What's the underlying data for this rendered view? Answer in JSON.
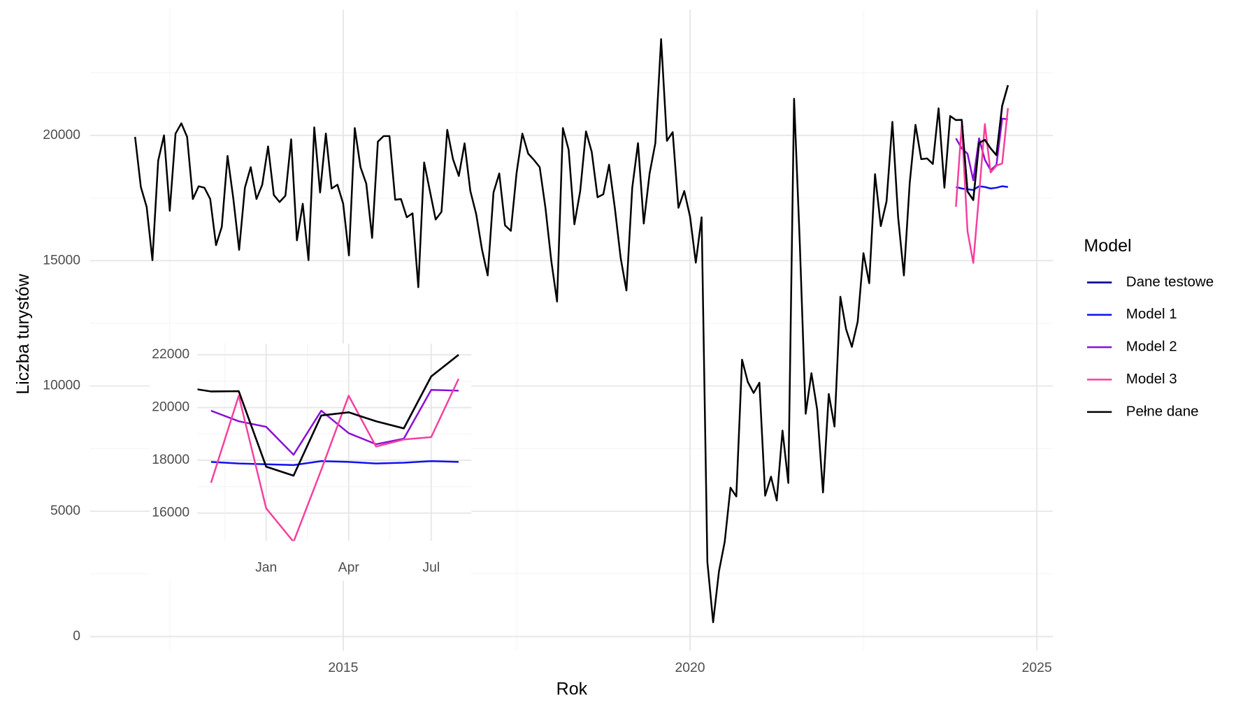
{
  "chart_data": [
    {
      "type": "line",
      "x_label": "Rok",
      "y_label": "Liczba turystów",
      "legend_title": "Model",
      "legend": "right",
      "grid": true,
      "xlim": [
        2011.35,
        2025.23
      ],
      "xticks": [
        2015,
        2020,
        2025
      ],
      "x_minor_ticks": [
        2012.5,
        2017.5,
        2022.5
      ],
      "ylim": [
        -570,
        25020
      ],
      "yticks": [
        0,
        5000,
        10000,
        15000,
        20000
      ],
      "y_minor_ticks": [
        2500,
        7500,
        12500,
        17500,
        22500
      ],
      "series": [
        {
          "name": "Dane testowe",
          "color": "#00008b",
          "x": [
            2023.833,
            2023.917,
            2024,
            2024.083,
            2024.167,
            2024.25,
            2024.333,
            2024.417,
            2024.5,
            2024.583
          ],
          "values": [
            20610,
            20620,
            17760,
            17420,
            19700,
            19820,
            19480,
            19210,
            21180,
            22000
          ]
        },
        {
          "name": "Model 1",
          "color": "#1010f0",
          "x": [
            2023.833,
            2023.917,
            2024,
            2024.083,
            2024.167,
            2024.25,
            2024.333,
            2024.417,
            2024.5,
            2024.583
          ],
          "values": [
            17940,
            17880,
            17850,
            17820,
            17970,
            17940,
            17880,
            17910,
            17970,
            17940
          ]
        },
        {
          "name": "Model 2",
          "color": "#8a0fd8",
          "x": [
            2023.833,
            2023.917,
            2024,
            2024.083,
            2024.167,
            2024.25,
            2024.333,
            2024.417,
            2024.5,
            2024.583
          ],
          "values": [
            19880,
            19480,
            19270,
            18210,
            19880,
            19030,
            18610,
            18820,
            20670,
            20640
          ]
        },
        {
          "name": "Model 3",
          "color": "#f5409e",
          "x": [
            2023.833,
            2023.917,
            2024,
            2024.083,
            2024.167,
            2024.25,
            2024.333,
            2024.417,
            2024.5,
            2024.583
          ],
          "values": [
            17150,
            20450,
            16180,
            14910,
            17640,
            20450,
            18520,
            18790,
            18880,
            21090
          ]
        },
        {
          "name": "Pełne dane",
          "color": "#000000",
          "x": [
            2012,
            2012.083,
            2012.167,
            2012.25,
            2012.333,
            2012.417,
            2012.5,
            2012.583,
            2012.667,
            2012.75,
            2012.833,
            2012.917,
            2013,
            2013.083,
            2013.167,
            2013.25,
            2013.333,
            2013.417,
            2013.5,
            2013.583,
            2013.667,
            2013.75,
            2013.833,
            2013.917,
            2014,
            2014.083,
            2014.167,
            2014.25,
            2014.333,
            2014.417,
            2014.5,
            2014.583,
            2014.667,
            2014.75,
            2014.833,
            2014.917,
            2015,
            2015.083,
            2015.167,
            2015.25,
            2015.333,
            2015.417,
            2015.5,
            2015.583,
            2015.667,
            2015.75,
            2015.833,
            2015.917,
            2016,
            2016.083,
            2016.167,
            2016.25,
            2016.333,
            2016.417,
            2016.5,
            2016.583,
            2016.667,
            2016.75,
            2016.833,
            2016.917,
            2017,
            2017.083,
            2017.167,
            2017.25,
            2017.333,
            2017.417,
            2017.5,
            2017.583,
            2017.667,
            2017.75,
            2017.833,
            2017.917,
            2018,
            2018.083,
            2018.167,
            2018.25,
            2018.333,
            2018.417,
            2018.5,
            2018.583,
            2018.667,
            2018.75,
            2018.833,
            2018.917,
            2019,
            2019.083,
            2019.167,
            2019.25,
            2019.333,
            2019.417,
            2019.5,
            2019.583,
            2019.667,
            2019.75,
            2019.833,
            2019.917,
            2020,
            2020.083,
            2020.167,
            2020.25,
            2020.333,
            2020.417,
            2020.5,
            2020.583,
            2020.667,
            2020.75,
            2020.833,
            2020.917,
            2021,
            2021.083,
            2021.167,
            2021.25,
            2021.333,
            2021.417,
            2021.5,
            2021.583,
            2021.667,
            2021.75,
            2021.833,
            2021.917,
            2022,
            2022.083,
            2022.167,
            2022.25,
            2022.333,
            2022.417,
            2022.5,
            2022.583,
            2022.667,
            2022.75,
            2022.833,
            2022.917,
            2023,
            2023.083,
            2023.167,
            2023.25,
            2023.333,
            2023.417,
            2023.5,
            2023.583,
            2023.667,
            2023.75,
            2023.833,
            2023.917,
            2024,
            2024.083,
            2024.167,
            2024.25,
            2024.333,
            2024.417,
            2024.5,
            2024.583
          ],
          "values": [
            19940,
            17940,
            17145,
            15020,
            18990,
            20000,
            16990,
            20070,
            20480,
            19940,
            17460,
            17970,
            17910,
            17460,
            15620,
            16350,
            19180,
            17460,
            15430,
            17910,
            18730,
            17460,
            18030,
            19560,
            17620,
            17340,
            17590,
            19840,
            15810,
            17270,
            15020,
            20320,
            17720,
            20070,
            17880,
            18030,
            17270,
            15210,
            20290,
            18730,
            18070,
            15910,
            19750,
            19970,
            19970,
            17430,
            17460,
            16730,
            16890,
            13940,
            18920,
            17780,
            16640,
            16950,
            20220,
            19050,
            18380,
            19680,
            17780,
            16860,
            15460,
            14410,
            17720,
            18480,
            16410,
            16190,
            18510,
            20070,
            19270,
            19020,
            18730,
            17080,
            14990,
            13370,
            20290,
            19430,
            16450,
            17780,
            20160,
            19340,
            17530,
            17650,
            18830,
            17080,
            15110,
            13810,
            17910,
            19690,
            16480,
            18480,
            19690,
            23840,
            19780,
            20130,
            17110,
            17780,
            16760,
            14920,
            16730,
            2980,
            570,
            2600,
            3780,
            5940,
            5590,
            11050,
            10160,
            9720,
            10130,
            5620,
            6380,
            5430,
            8220,
            6130,
            21460,
            15650,
            8890,
            10510,
            9050,
            5750,
            9680,
            8380,
            13560,
            12260,
            11560,
            12570,
            15300,
            14100,
            18450,
            16380,
            17370,
            20540,
            16730,
            14410,
            18100,
            20420,
            19050,
            19080,
            18860,
            21080,
            17910,
            20770,
            20610,
            20620,
            17760,
            17420,
            19700,
            19820,
            19480,
            19210,
            21180,
            22000
          ]
        }
      ]
    },
    {
      "type": "line",
      "grid": true,
      "xlim": [
        2023.792,
        2024.622
      ],
      "xticks": [
        {
          "value": 2024,
          "label": "Jan"
        },
        {
          "value": 2024.25,
          "label": "Apr"
        },
        {
          "value": 2024.5,
          "label": "Jul"
        }
      ],
      "x_minor_ticks": [
        2023.875,
        2024.125,
        2024.375
      ],
      "ylim": [
        14940,
        22420
      ],
      "yticks": [
        16000,
        18000,
        20000,
        22000
      ],
      "y_minor_ticks": [
        17000,
        19000,
        21000
      ],
      "series": [
        {
          "name": "Dane testowe",
          "color": "#00008b",
          "x": [
            2023.833,
            2023.917,
            2024,
            2024.083,
            2024.167,
            2024.25,
            2024.333,
            2024.417,
            2024.5,
            2024.583
          ],
          "values": [
            20610,
            20620,
            17760,
            17420,
            19700,
            19820,
            19480,
            19210,
            21180,
            22000
          ]
        },
        {
          "name": "Model 1",
          "color": "#1010f0",
          "x": [
            2023.833,
            2023.917,
            2024,
            2024.083,
            2024.167,
            2024.25,
            2024.333,
            2024.417,
            2024.5,
            2024.583
          ],
          "values": [
            17940,
            17880,
            17850,
            17820,
            17970,
            17940,
            17880,
            17910,
            17970,
            17940
          ]
        },
        {
          "name": "Model 2",
          "color": "#8a0fd8",
          "x": [
            2023.833,
            2023.917,
            2024,
            2024.083,
            2024.167,
            2024.25,
            2024.333,
            2024.417,
            2024.5,
            2024.583
          ],
          "values": [
            19880,
            19480,
            19270,
            18210,
            19880,
            19030,
            18610,
            18820,
            20670,
            20640
          ]
        },
        {
          "name": "Model 3",
          "color": "#f5409e",
          "x": [
            2023.833,
            2023.917,
            2024,
            2024.083,
            2024.167,
            2024.25,
            2024.333,
            2024.417,
            2024.5,
            2024.583
          ],
          "values": [
            17150,
            20450,
            16180,
            14910,
            17640,
            20450,
            18520,
            18790,
            18880,
            21090
          ]
        },
        {
          "name": "Pełne dane",
          "color": "#000000",
          "x": [
            2023.75,
            2023.833,
            2023.917,
            2024,
            2024.083,
            2024.167,
            2024.25,
            2024.333,
            2024.417,
            2024.5,
            2024.583
          ],
          "values": [
            20770,
            20610,
            20620,
            17760,
            17420,
            19700,
            19820,
            19480,
            19210,
            21180,
            22000
          ]
        }
      ]
    }
  ]
}
